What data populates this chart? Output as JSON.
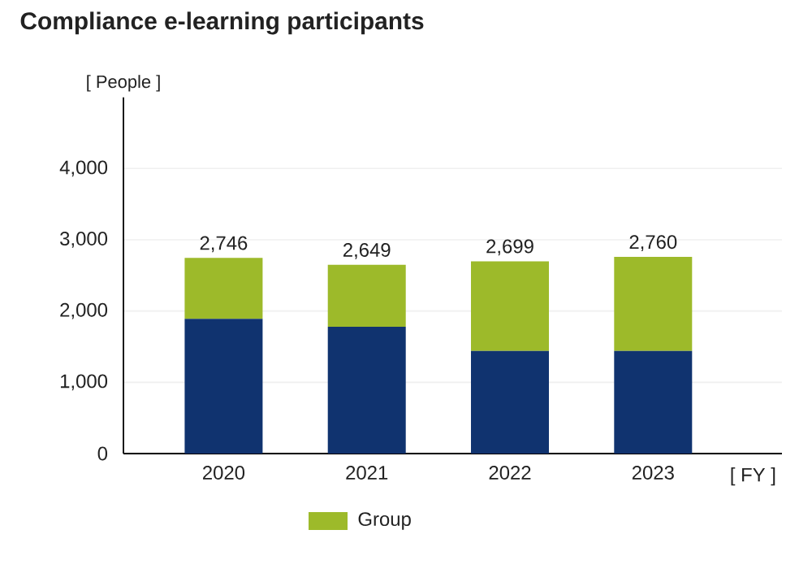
{
  "chart_data": {
    "type": "bar",
    "stacked": true,
    "title": "Compliance e-learning participants",
    "xlabel": "[ FY ]",
    "ylabel": "[ People ]",
    "categories": [
      "2020",
      "2021",
      "2022",
      "2023"
    ],
    "series": [
      {
        "color": "#10336f",
        "values": [
          1890,
          1780,
          1440,
          1440
        ]
      },
      {
        "name": "Group",
        "color": "#9dba2a",
        "values": [
          856,
          869,
          1259,
          1320
        ]
      }
    ],
    "totals": [
      "2,746",
      "2,649",
      "2,699",
      "2,760"
    ],
    "ylim": [
      0,
      5000
    ],
    "yticks": [
      {
        "value": 0,
        "label": "0"
      },
      {
        "value": 1000,
        "label": "1,000"
      },
      {
        "value": 2000,
        "label": "2,000"
      },
      {
        "value": 3000,
        "label": "3,000"
      },
      {
        "value": 4000,
        "label": "4,000"
      }
    ],
    "grid": "y",
    "legend": "bottom left"
  }
}
